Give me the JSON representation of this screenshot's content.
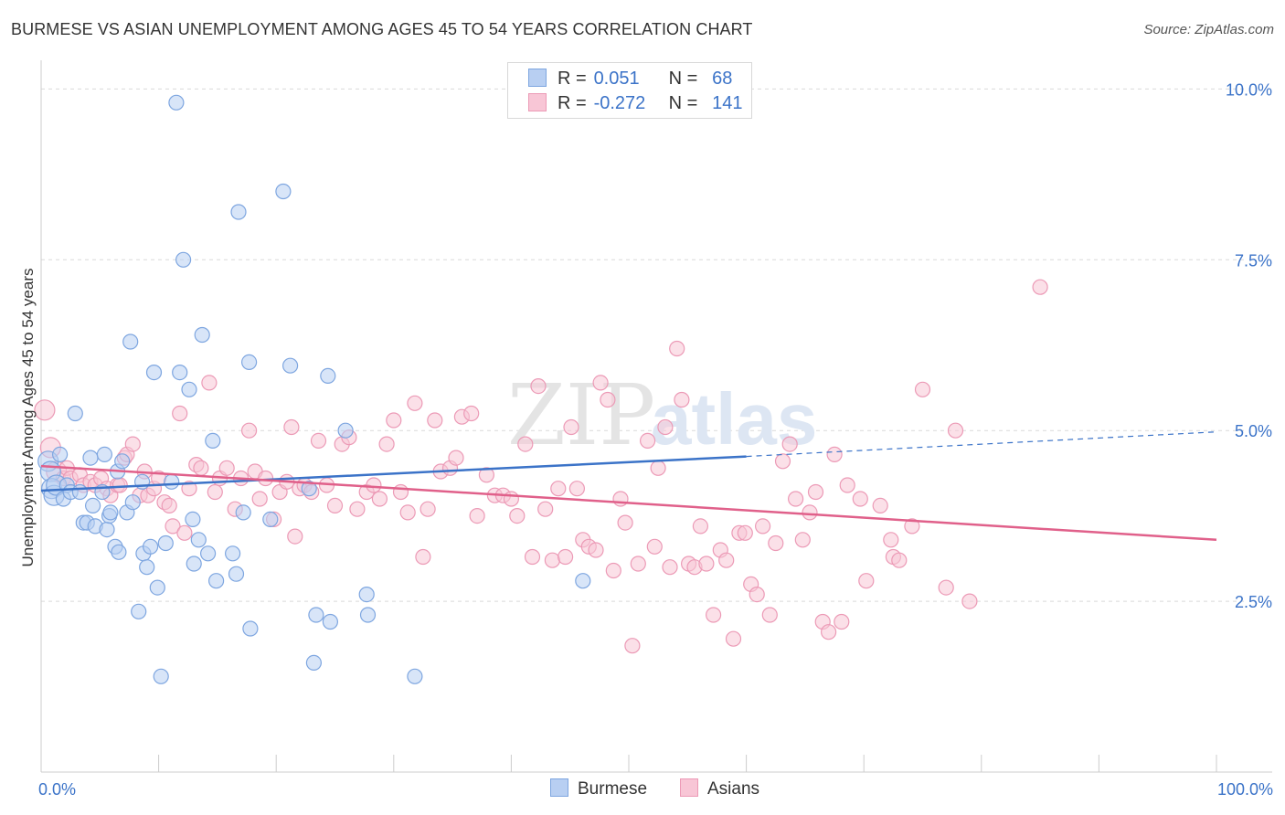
{
  "title": "BURMESE VS ASIAN UNEMPLOYMENT AMONG AGES 45 TO 54 YEARS CORRELATION CHART",
  "source": "Source: ZipAtlas.com",
  "watermark": {
    "zip": "ZIP",
    "atlas": "atlas"
  },
  "legend": {
    "r_label": "R =",
    "n_label": "N =",
    "rows": [
      {
        "name": "Burmese",
        "r": "0.051",
        "n": "68",
        "fill": "#b8cff2",
        "stroke": "#7ea6e0"
      },
      {
        "name": "Asians",
        "r": "-0.272",
        "n": "141",
        "fill": "#f8c6d6",
        "stroke": "#ec9ab6"
      }
    ]
  },
  "chart_data": {
    "type": "scatter",
    "title": "BURMESE VS ASIAN UNEMPLOYMENT AMONG AGES 45 TO 54 YEARS CORRELATION CHART",
    "xlabel": "",
    "ylabel": "Unemployment Among Ages 45 to 54 years",
    "xlim": [
      0,
      100
    ],
    "ylim": [
      0,
      10.5
    ],
    "x_tick_labels": [
      {
        "value": 0,
        "label": "0.0%"
      },
      {
        "value": 100,
        "label": "100.0%"
      }
    ],
    "y_tick_labels": [
      {
        "value": 2.5,
        "label": "2.5%"
      },
      {
        "value": 5.0,
        "label": "5.0%"
      },
      {
        "value": 7.5,
        "label": "7.5%"
      },
      {
        "value": 10.0,
        "label": "10.0%"
      }
    ],
    "grid": "horizontal dashed",
    "legend_position": "top-center",
    "series": [
      {
        "name": "Burmese",
        "color": "#3b73c8",
        "fill": "#b8cff2",
        "stroke": "#7ea6e0",
        "r": 0.051,
        "n": 68,
        "trend": {
          "x0": 0,
          "y0": 4.12,
          "x1": 60,
          "y1": 4.62,
          "x_end": 100,
          "y_end": 4.98
        },
        "points": [
          [
            0.6,
            4.55
          ],
          [
            0.8,
            4.4
          ],
          [
            0.9,
            4.15
          ],
          [
            1.1,
            4.05
          ],
          [
            1.3,
            4.2
          ],
          [
            1.6,
            4.65
          ],
          [
            1.9,
            4.0
          ],
          [
            2.2,
            4.2
          ],
          [
            2.5,
            4.1
          ],
          [
            2.9,
            5.25
          ],
          [
            3.3,
            4.1
          ],
          [
            3.6,
            3.65
          ],
          [
            3.9,
            3.65
          ],
          [
            4.2,
            4.6
          ],
          [
            4.4,
            3.9
          ],
          [
            4.6,
            3.6
          ],
          [
            5.2,
            4.1
          ],
          [
            5.4,
            4.65
          ],
          [
            5.6,
            3.55
          ],
          [
            5.8,
            3.75
          ],
          [
            5.9,
            3.8
          ],
          [
            6.3,
            3.3
          ],
          [
            6.5,
            4.4
          ],
          [
            6.6,
            3.22
          ],
          [
            6.9,
            4.55
          ],
          [
            7.3,
            3.8
          ],
          [
            7.6,
            6.3
          ],
          [
            7.8,
            3.95
          ],
          [
            8.3,
            2.35
          ],
          [
            8.6,
            4.25
          ],
          [
            8.7,
            3.2
          ],
          [
            9.0,
            3.0
          ],
          [
            9.3,
            3.3
          ],
          [
            9.6,
            5.85
          ],
          [
            9.9,
            2.7
          ],
          [
            10.2,
            1.4
          ],
          [
            10.6,
            3.35
          ],
          [
            11.1,
            4.25
          ],
          [
            11.5,
            9.8
          ],
          [
            11.8,
            5.85
          ],
          [
            12.1,
            7.5
          ],
          [
            12.6,
            5.6
          ],
          [
            12.9,
            3.7
          ],
          [
            13.0,
            3.05
          ],
          [
            13.4,
            3.4
          ],
          [
            13.7,
            6.4
          ],
          [
            14.2,
            3.2
          ],
          [
            14.6,
            4.85
          ],
          [
            14.9,
            2.8
          ],
          [
            16.3,
            3.2
          ],
          [
            16.6,
            2.9
          ],
          [
            16.8,
            8.2
          ],
          [
            17.2,
            3.8
          ],
          [
            17.7,
            6.0
          ],
          [
            17.8,
            2.1
          ],
          [
            19.5,
            3.7
          ],
          [
            20.6,
            8.5
          ],
          [
            21.2,
            5.95
          ],
          [
            22.8,
            4.15
          ],
          [
            23.2,
            1.6
          ],
          [
            23.4,
            2.3
          ],
          [
            24.4,
            5.8
          ],
          [
            24.6,
            2.2
          ],
          [
            25.9,
            5.0
          ],
          [
            27.7,
            2.6
          ],
          [
            27.8,
            2.3
          ],
          [
            31.8,
            1.4
          ],
          [
            46.1,
            2.8
          ]
        ]
      },
      {
        "name": "Asians",
        "color": "#e0608a",
        "fill": "#f8c6d6",
        "stroke": "#ec9ab6",
        "r": -0.272,
        "n": 141,
        "trend": {
          "x0": 0,
          "y0": 4.48,
          "x1": 100,
          "y1": 3.4
        },
        "points": [
          [
            0.3,
            5.3
          ],
          [
            0.8,
            4.75
          ],
          [
            1.3,
            4.4
          ],
          [
            1.9,
            4.3
          ],
          [
            2.2,
            4.45
          ],
          [
            2.5,
            4.3
          ],
          [
            3.3,
            4.35
          ],
          [
            3.6,
            4.2
          ],
          [
            4.2,
            4.25
          ],
          [
            4.6,
            4.2
          ],
          [
            5.1,
            4.3
          ],
          [
            5.6,
            4.15
          ],
          [
            5.9,
            4.05
          ],
          [
            6.5,
            4.2
          ],
          [
            6.7,
            4.2
          ],
          [
            7.1,
            4.6
          ],
          [
            7.3,
            4.65
          ],
          [
            7.8,
            4.8
          ],
          [
            8.4,
            4.05
          ],
          [
            8.8,
            4.4
          ],
          [
            9.1,
            4.05
          ],
          [
            9.6,
            4.15
          ],
          [
            10.0,
            4.3
          ],
          [
            10.5,
            3.95
          ],
          [
            10.9,
            3.9
          ],
          [
            11.2,
            3.6
          ],
          [
            11.8,
            5.25
          ],
          [
            12.2,
            3.5
          ],
          [
            12.6,
            4.15
          ],
          [
            13.2,
            4.5
          ],
          [
            13.6,
            4.45
          ],
          [
            14.3,
            5.7
          ],
          [
            14.8,
            4.1
          ],
          [
            15.2,
            4.3
          ],
          [
            15.8,
            4.45
          ],
          [
            16.5,
            3.85
          ],
          [
            17.0,
            4.3
          ],
          [
            17.7,
            5.0
          ],
          [
            18.2,
            4.4
          ],
          [
            18.6,
            4.0
          ],
          [
            19.1,
            4.3
          ],
          [
            19.8,
            3.7
          ],
          [
            20.3,
            4.1
          ],
          [
            20.9,
            4.25
          ],
          [
            21.3,
            5.05
          ],
          [
            21.6,
            3.45
          ],
          [
            22.0,
            4.15
          ],
          [
            22.4,
            4.2
          ],
          [
            23.0,
            4.1
          ],
          [
            23.6,
            4.85
          ],
          [
            24.3,
            4.2
          ],
          [
            25.0,
            3.9
          ],
          [
            25.6,
            4.8
          ],
          [
            26.2,
            4.9
          ],
          [
            26.9,
            3.85
          ],
          [
            27.7,
            4.1
          ],
          [
            28.3,
            4.2
          ],
          [
            28.8,
            4.0
          ],
          [
            29.4,
            4.8
          ],
          [
            30.0,
            5.15
          ],
          [
            30.6,
            4.1
          ],
          [
            31.2,
            3.8
          ],
          [
            31.8,
            5.4
          ],
          [
            32.5,
            3.15
          ],
          [
            32.9,
            3.85
          ],
          [
            33.5,
            5.15
          ],
          [
            34.0,
            4.4
          ],
          [
            34.8,
            4.45
          ],
          [
            35.3,
            4.6
          ],
          [
            35.8,
            5.2
          ],
          [
            36.6,
            5.25
          ],
          [
            37.1,
            3.75
          ],
          [
            37.9,
            4.35
          ],
          [
            38.6,
            4.05
          ],
          [
            39.3,
            4.05
          ],
          [
            40.0,
            4.0
          ],
          [
            40.5,
            3.75
          ],
          [
            41.2,
            4.8
          ],
          [
            41.8,
            3.15
          ],
          [
            42.3,
            5.65
          ],
          [
            42.9,
            3.85
          ],
          [
            43.5,
            3.1
          ],
          [
            44.0,
            4.15
          ],
          [
            44.6,
            3.15
          ],
          [
            45.1,
            5.05
          ],
          [
            45.6,
            4.15
          ],
          [
            46.1,
            3.4
          ],
          [
            46.6,
            3.3
          ],
          [
            47.2,
            3.25
          ],
          [
            47.6,
            5.7
          ],
          [
            48.2,
            5.45
          ],
          [
            48.7,
            2.95
          ],
          [
            49.3,
            4.0
          ],
          [
            49.7,
            3.65
          ],
          [
            50.3,
            1.85
          ],
          [
            50.8,
            3.05
          ],
          [
            51.6,
            4.85
          ],
          [
            52.2,
            3.3
          ],
          [
            52.5,
            4.45
          ],
          [
            53.1,
            5.05
          ],
          [
            53.5,
            3.0
          ],
          [
            54.1,
            6.2
          ],
          [
            54.5,
            5.45
          ],
          [
            55.1,
            3.05
          ],
          [
            55.6,
            3.0
          ],
          [
            56.1,
            3.6
          ],
          [
            56.6,
            3.05
          ],
          [
            57.2,
            2.3
          ],
          [
            57.8,
            3.25
          ],
          [
            58.3,
            3.1
          ],
          [
            58.9,
            1.95
          ],
          [
            59.4,
            3.5
          ],
          [
            59.9,
            3.5
          ],
          [
            60.4,
            2.75
          ],
          [
            60.9,
            2.6
          ],
          [
            61.4,
            3.6
          ],
          [
            62.0,
            2.3
          ],
          [
            62.5,
            3.35
          ],
          [
            63.1,
            4.55
          ],
          [
            63.7,
            4.8
          ],
          [
            64.2,
            4.0
          ],
          [
            64.8,
            3.4
          ],
          [
            65.4,
            3.8
          ],
          [
            65.9,
            4.1
          ],
          [
            66.5,
            2.2
          ],
          [
            67.0,
            2.05
          ],
          [
            67.5,
            4.65
          ],
          [
            68.1,
            2.2
          ],
          [
            68.6,
            4.2
          ],
          [
            69.7,
            4.0
          ],
          [
            70.2,
            2.8
          ],
          [
            71.4,
            3.9
          ],
          [
            72.3,
            3.4
          ],
          [
            72.5,
            3.15
          ],
          [
            73.0,
            3.1
          ],
          [
            74.1,
            3.6
          ],
          [
            75.0,
            5.6
          ],
          [
            77.0,
            2.7
          ],
          [
            77.8,
            5.0
          ],
          [
            79.0,
            2.5
          ],
          [
            85.0,
            7.1
          ]
        ]
      }
    ]
  }
}
